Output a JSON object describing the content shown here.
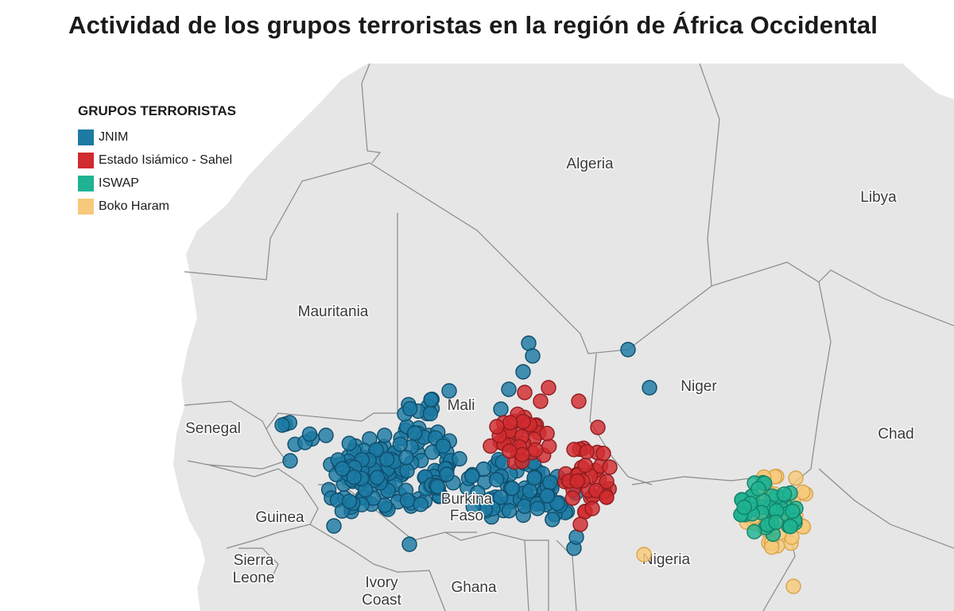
{
  "title": "Actividad de los grupos terroristas en la región de África Occidental",
  "legend": {
    "title": "GRUPOS TERRORISTAS",
    "items": [
      {
        "key": "jnim",
        "label": "JNIM",
        "color": "#1c7aa3"
      },
      {
        "key": "is_sahel",
        "label": "Estado Isiámico - Sahel",
        "color": "#d12c2f"
      },
      {
        "key": "iswap",
        "label": "ISWAP",
        "color": "#1fb393"
      },
      {
        "key": "boko",
        "label": "Boko Haram",
        "color": "#f7c97a"
      }
    ]
  },
  "countries": {
    "algeria": "Algeria",
    "libya": "Libya",
    "mauritania": "Mauritania",
    "mali": "Mali",
    "niger": "Niger",
    "chad": "Chad",
    "senegal": "Senegal",
    "guinea": "Guinea",
    "sierra_leone": [
      "Sierra",
      "Leone"
    ],
    "ivory_coast": [
      "Ivory",
      "Coast"
    ],
    "ghana": "Ghana",
    "burkina_faso": [
      "Burkina",
      "Faso"
    ],
    "nigeria": "Nigeria"
  },
  "colors": {
    "land": "#e6e6e6",
    "sea": "#ffffff",
    "border": "#8a8a8a"
  }
}
